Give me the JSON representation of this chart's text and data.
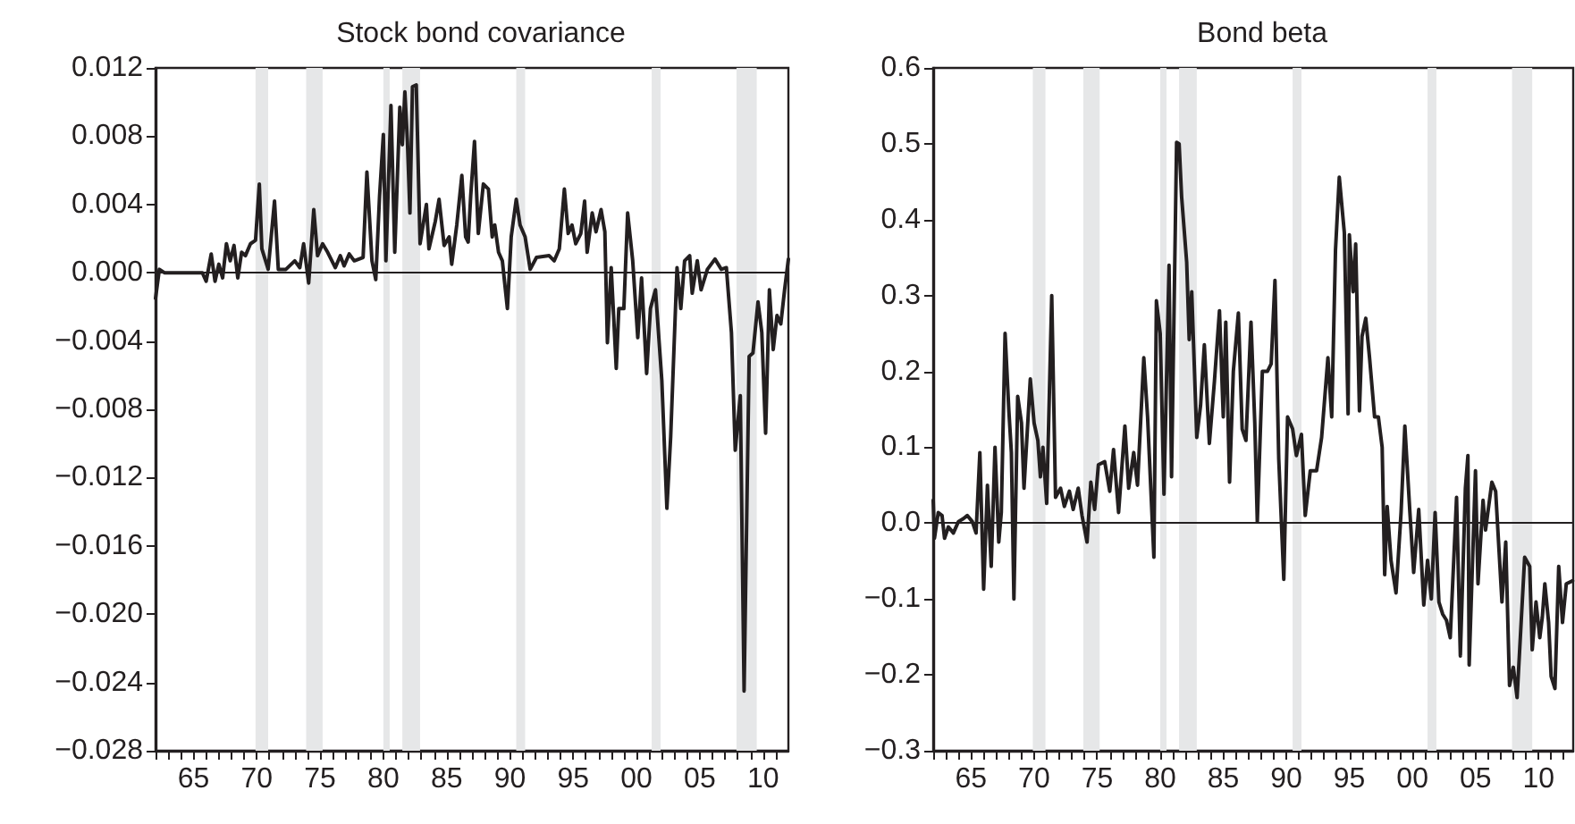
{
  "chart_data": [
    {
      "type": "line",
      "title": "Stock bond covariance",
      "marker": "none",
      "line_style": "solid",
      "xlim": [
        1962,
        2012
      ],
      "xticks": [
        {
          "value": 1962,
          "label": null
        },
        {
          "value": 1963,
          "label": null
        },
        {
          "value": 1964,
          "label": null
        },
        {
          "value": 1965,
          "label": "65"
        },
        {
          "value": 1966,
          "label": null
        },
        {
          "value": 1967,
          "label": null
        },
        {
          "value": 1968,
          "label": null
        },
        {
          "value": 1969,
          "label": null
        },
        {
          "value": 1970,
          "label": "70"
        },
        {
          "value": 1971,
          "label": null
        },
        {
          "value": 1972,
          "label": null
        },
        {
          "value": 1973,
          "label": null
        },
        {
          "value": 1974,
          "label": null
        },
        {
          "value": 1975,
          "label": "75"
        },
        {
          "value": 1976,
          "label": null
        },
        {
          "value": 1977,
          "label": null
        },
        {
          "value": 1978,
          "label": null
        },
        {
          "value": 1979,
          "label": null
        },
        {
          "value": 1980,
          "label": "80"
        },
        {
          "value": 1981,
          "label": null
        },
        {
          "value": 1982,
          "label": null
        },
        {
          "value": 1983,
          "label": null
        },
        {
          "value": 1984,
          "label": null
        },
        {
          "value": 1985,
          "label": "85"
        },
        {
          "value": 1986,
          "label": null
        },
        {
          "value": 1987,
          "label": null
        },
        {
          "value": 1988,
          "label": null
        },
        {
          "value": 1989,
          "label": null
        },
        {
          "value": 1990,
          "label": "90"
        },
        {
          "value": 1991,
          "label": null
        },
        {
          "value": 1992,
          "label": null
        },
        {
          "value": 1993,
          "label": null
        },
        {
          "value": 1994,
          "label": null
        },
        {
          "value": 1995,
          "label": "95"
        },
        {
          "value": 1996,
          "label": null
        },
        {
          "value": 1997,
          "label": null
        },
        {
          "value": 1998,
          "label": null
        },
        {
          "value": 1999,
          "label": null
        },
        {
          "value": 2000,
          "label": "00"
        },
        {
          "value": 2001,
          "label": null
        },
        {
          "value": 2002,
          "label": null
        },
        {
          "value": 2003,
          "label": null
        },
        {
          "value": 2004,
          "label": null
        },
        {
          "value": 2005,
          "label": "05"
        },
        {
          "value": 2006,
          "label": null
        },
        {
          "value": 2007,
          "label": null
        },
        {
          "value": 2008,
          "label": null
        },
        {
          "value": 2009,
          "label": null
        },
        {
          "value": 2010,
          "label": "10"
        },
        {
          "value": 2011,
          "label": null
        }
      ],
      "ylim": [
        -0.028,
        0.012
      ],
      "yticks": [
        0.012,
        0.008,
        0.004,
        {
          "value": 0,
          "label": "0.000"
        },
        {
          "value": -0.004,
          "label": "−0.004"
        },
        {
          "value": -0.008,
          "label": "−0.008"
        },
        {
          "value": -0.012,
          "label": "−0.012"
        },
        {
          "value": -0.016,
          "label": "−0.016"
        },
        {
          "value": -0.02,
          "label": "−0.020"
        },
        {
          "value": -0.024,
          "label": "−0.024"
        },
        {
          "value": -0.028,
          "label": "−0.028"
        }
      ],
      "ref_lines": [
        {
          "axis": "y",
          "value": 0,
          "color": "#231f20"
        }
      ],
      "bands": [
        {
          "axis": "x",
          "from": 1969.9,
          "to": 1970.9,
          "color": "#e6e7e8"
        },
        {
          "axis": "x",
          "from": 1973.9,
          "to": 1975.2,
          "color": "#e6e7e8"
        },
        {
          "axis": "x",
          "from": 1980.0,
          "to": 1980.5,
          "color": "#e6e7e8"
        },
        {
          "axis": "x",
          "from": 1981.5,
          "to": 1982.9,
          "color": "#e6e7e8"
        },
        {
          "axis": "x",
          "from": 1990.5,
          "to": 1991.2,
          "color": "#e6e7e8"
        },
        {
          "axis": "x",
          "from": 2001.2,
          "to": 2001.9,
          "color": "#e6e7e8"
        },
        {
          "axis": "x",
          "from": 2007.9,
          "to": 2009.5,
          "color": "#e6e7e8"
        }
      ],
      "series": [
        {
          "color": "#231f20",
          "x": [
            1962.0,
            1962.3,
            1962.7,
            1964.5,
            1965.7,
            1966.0,
            1966.4,
            1966.7,
            1967.0,
            1967.3,
            1967.6,
            1967.9,
            1968.2,
            1968.5,
            1968.8,
            1969.1,
            1969.5,
            1969.9,
            1970.2,
            1970.4,
            1970.9,
            1971.4,
            1971.7,
            1972.3,
            1973.0,
            1973.4,
            1973.7,
            1974.1,
            1974.5,
            1974.8,
            1975.2,
            1975.6,
            1976.2,
            1976.6,
            1976.9,
            1977.3,
            1977.7,
            1978.4,
            1978.7,
            1979.1,
            1979.4,
            1979.7,
            1980.0,
            1980.2,
            1980.6,
            1980.9,
            1981.3,
            1981.5,
            1981.7,
            1981.9,
            1982.1,
            1982.3,
            1982.6,
            1982.9,
            1983.4,
            1983.6,
            1984.1,
            1984.4,
            1984.8,
            1985.2,
            1985.4,
            1985.8,
            1986.2,
            1986.5,
            1986.7,
            1986.9,
            1987.2,
            1987.5,
            1987.9,
            1988.3,
            1988.6,
            1988.8,
            1989.1,
            1989.4,
            1989.8,
            1990.1,
            1990.5,
            1990.8,
            1991.2,
            1991.6,
            1992.1,
            1993.1,
            1993.5,
            1993.9,
            1994.3,
            1994.6,
            1994.9,
            1995.2,
            1995.6,
            1995.9,
            1996.1,
            1996.5,
            1996.8,
            1997.2,
            1997.5,
            1997.7,
            1998.0,
            1998.4,
            1998.6,
            1999.0,
            1999.3,
            1999.7,
            2000.1,
            2000.4,
            2000.8,
            2001.1,
            2001.5,
            2002.0,
            2002.4,
            2002.7,
            2003.2,
            2003.5,
            2003.8,
            2004.2,
            2004.4,
            2004.8,
            2005.1,
            2005.6,
            2006.2,
            2006.7,
            2007.1,
            2007.5,
            2007.8,
            2008.2,
            2008.5,
            2008.9,
            2009.2,
            2009.6,
            2009.9,
            2010.2,
            2010.5,
            2010.8,
            2011.1,
            2011.4,
            2011.7,
            2012.0
          ],
          "values": [
            -0.0015,
            0.0002,
            0.0,
            0.0,
            0.0,
            -0.0005,
            0.0011,
            -0.0005,
            0.0005,
            -0.0003,
            0.0017,
            0.0007,
            0.0016,
            -0.0003,
            0.0012,
            0.001,
            0.0017,
            0.0019,
            0.0052,
            0.0014,
            0.0002,
            0.0042,
            0.0002,
            0.0002,
            0.0007,
            0.0003,
            0.0017,
            -0.0006,
            0.0037,
            0.001,
            0.0017,
            0.0012,
            0.0003,
            0.001,
            0.0004,
            0.0011,
            0.0007,
            0.0009,
            0.0059,
            0.0007,
            -0.0004,
            0.0045,
            0.0081,
            0.0007,
            0.0098,
            0.0012,
            0.0097,
            0.0075,
            0.0106,
            0.0077,
            0.0035,
            0.0109,
            0.011,
            0.0017,
            0.004,
            0.0014,
            0.003,
            0.0043,
            0.0016,
            0.0021,
            0.0005,
            0.0028,
            0.0057,
            0.0021,
            0.0018,
            0.0045,
            0.0077,
            0.0023,
            0.0052,
            0.0049,
            0.0021,
            0.0028,
            0.0012,
            0.0007,
            -0.0021,
            0.0021,
            0.0043,
            0.0028,
            0.0021,
            0.0002,
            0.0009,
            0.001,
            0.0007,
            0.0014,
            0.0049,
            0.0023,
            0.0028,
            0.0017,
            0.0023,
            0.0042,
            0.0012,
            0.0035,
            0.0024,
            0.0037,
            0.0024,
            -0.0041,
            0.0003,
            -0.0056,
            -0.0021,
            -0.0021,
            0.0035,
            0.0007,
            -0.0038,
            -0.0003,
            -0.0059,
            -0.0021,
            -0.001,
            -0.0063,
            -0.0138,
            -0.0096,
            0.0003,
            -0.0021,
            0.0007,
            0.001,
            -0.0012,
            0.0007,
            -0.001,
            0.0002,
            0.0008,
            0.0002,
            0.0003,
            -0.0035,
            -0.0104,
            -0.0072,
            -0.0245,
            -0.0049,
            -0.0047,
            -0.0017,
            -0.0035,
            -0.0094,
            -0.001,
            -0.0045,
            -0.0025,
            -0.003,
            -0.001,
            0.0008
          ]
        }
      ]
    },
    {
      "type": "line",
      "title": "Bond beta",
      "marker": "none",
      "line_style": "solid",
      "xlim": [
        1962,
        2012.75
      ],
      "xticks": [
        {
          "value": 1962,
          "label": null
        },
        {
          "value": 1963,
          "label": null
        },
        {
          "value": 1964,
          "label": null
        },
        {
          "value": 1965,
          "label": "65"
        },
        {
          "value": 1966,
          "label": null
        },
        {
          "value": 1967,
          "label": null
        },
        {
          "value": 1968,
          "label": null
        },
        {
          "value": 1969,
          "label": null
        },
        {
          "value": 1970,
          "label": "70"
        },
        {
          "value": 1971,
          "label": null
        },
        {
          "value": 1972,
          "label": null
        },
        {
          "value": 1973,
          "label": null
        },
        {
          "value": 1974,
          "label": null
        },
        {
          "value": 1975,
          "label": "75"
        },
        {
          "value": 1976,
          "label": null
        },
        {
          "value": 1977,
          "label": null
        },
        {
          "value": 1978,
          "label": null
        },
        {
          "value": 1979,
          "label": null
        },
        {
          "value": 1980,
          "label": "80"
        },
        {
          "value": 1981,
          "label": null
        },
        {
          "value": 1982,
          "label": null
        },
        {
          "value": 1983,
          "label": null
        },
        {
          "value": 1984,
          "label": null
        },
        {
          "value": 1985,
          "label": "85"
        },
        {
          "value": 1986,
          "label": null
        },
        {
          "value": 1987,
          "label": null
        },
        {
          "value": 1988,
          "label": null
        },
        {
          "value": 1989,
          "label": null
        },
        {
          "value": 1990,
          "label": "90"
        },
        {
          "value": 1991,
          "label": null
        },
        {
          "value": 1992,
          "label": null
        },
        {
          "value": 1993,
          "label": null
        },
        {
          "value": 1994,
          "label": null
        },
        {
          "value": 1995,
          "label": "95"
        },
        {
          "value": 1996,
          "label": null
        },
        {
          "value": 1997,
          "label": null
        },
        {
          "value": 1998,
          "label": null
        },
        {
          "value": 1999,
          "label": null
        },
        {
          "value": 2000,
          "label": "00"
        },
        {
          "value": 2001,
          "label": null
        },
        {
          "value": 2002,
          "label": null
        },
        {
          "value": 2003,
          "label": null
        },
        {
          "value": 2004,
          "label": null
        },
        {
          "value": 2005,
          "label": "05"
        },
        {
          "value": 2006,
          "label": null
        },
        {
          "value": 2007,
          "label": null
        },
        {
          "value": 2008,
          "label": null
        },
        {
          "value": 2009,
          "label": null
        },
        {
          "value": 2010,
          "label": "10"
        },
        {
          "value": 2011,
          "label": null
        },
        {
          "value": 2012,
          "label": null
        }
      ],
      "ylim": [
        -0.3,
        0.6
      ],
      "yticks": [
        0.6,
        0.5,
        0.4,
        0.3,
        0.2,
        0.1,
        {
          "value": 0,
          "label": "0.0"
        },
        {
          "value": -0.1,
          "label": "−0.1"
        },
        {
          "value": -0.2,
          "label": "−0.2"
        },
        {
          "value": -0.3,
          "label": "−0.3"
        }
      ],
      "ref_lines": [
        {
          "axis": "y",
          "value": 0,
          "color": "#231f20"
        }
      ],
      "bands": [
        {
          "axis": "x",
          "from": 1969.9,
          "to": 1970.9,
          "color": "#e6e7e8"
        },
        {
          "axis": "x",
          "from": 1973.9,
          "to": 1975.2,
          "color": "#e6e7e8"
        },
        {
          "axis": "x",
          "from": 1980.0,
          "to": 1980.5,
          "color": "#e6e7e8"
        },
        {
          "axis": "x",
          "from": 1981.5,
          "to": 1982.9,
          "color": "#e6e7e8"
        },
        {
          "axis": "x",
          "from": 1990.5,
          "to": 1991.2,
          "color": "#e6e7e8"
        },
        {
          "axis": "x",
          "from": 2001.2,
          "to": 2001.9,
          "color": "#e6e7e8"
        },
        {
          "axis": "x",
          "from": 2007.9,
          "to": 2009.5,
          "color": "#e6e7e8"
        }
      ],
      "series": [
        {
          "color": "#231f20",
          "x": [
            1962.0,
            1962.1,
            1962.4,
            1962.7,
            1962.9,
            1963.2,
            1963.6,
            1964.0,
            1964.4,
            1964.7,
            1965.1,
            1965.4,
            1965.7,
            1966.0,
            1966.3,
            1966.6,
            1966.9,
            1967.2,
            1967.4,
            1967.7,
            1968.0,
            1968.2,
            1968.4,
            1968.7,
            1969.0,
            1969.2,
            1969.7,
            1970.0,
            1970.3,
            1970.5,
            1970.7,
            1971.0,
            1971.4,
            1971.7,
            1972.1,
            1972.4,
            1972.8,
            1973.1,
            1973.5,
            1973.8,
            1974.2,
            1974.5,
            1974.8,
            1975.1,
            1975.6,
            1976.0,
            1976.3,
            1976.7,
            1977.2,
            1977.5,
            1977.9,
            1978.2,
            1978.7,
            1979.0,
            1979.5,
            1979.7,
            1980.0,
            1980.3,
            1980.7,
            1980.9,
            1981.3,
            1981.5,
            1981.7,
            1982.1,
            1982.3,
            1982.5,
            1982.9,
            1983.2,
            1983.5,
            1983.9,
            1984.3,
            1984.7,
            1985.0,
            1985.2,
            1985.5,
            1985.8,
            1986.2,
            1986.5,
            1986.8,
            1987.2,
            1987.5,
            1987.7,
            1988.1,
            1988.5,
            1988.8,
            1989.1,
            1989.4,
            1989.8,
            1990.1,
            1990.5,
            1990.8,
            1991.2,
            1991.5,
            1991.9,
            1992.4,
            1992.8,
            1993.3,
            1993.6,
            1993.9,
            1994.2,
            1994.6,
            1994.9,
            1995.0,
            1995.3,
            1995.5,
            1995.8,
            1996.0,
            1996.3,
            1996.6,
            1997.0,
            1997.3,
            1997.6,
            1997.8,
            1998.0,
            1998.3,
            1998.7,
            1999.1,
            1999.4,
            1999.8,
            2000.1,
            2000.5,
            2000.9,
            2001.2,
            2001.5,
            2001.8,
            2002.1,
            2002.4,
            2002.7,
            2003.0,
            2003.5,
            2003.8,
            2004.2,
            2004.4,
            2004.5,
            2005.0,
            2005.2,
            2005.6,
            2005.8,
            2006.3,
            2006.6,
            2007.1,
            2007.4,
            2007.7,
            2008.0,
            2008.3,
            2008.9,
            2009.3,
            2009.5,
            2009.8,
            2010.1,
            2010.3,
            2010.5,
            2010.8,
            2011.0,
            2011.3,
            2011.6,
            2011.9,
            2012.2,
            2012.7
          ],
          "values": [
            0.03,
            -0.02,
            0.014,
            0.01,
            -0.02,
            -0.005,
            -0.013,
            0.002,
            0.006,
            0.01,
            0.002,
            -0.013,
            0.093,
            -0.087,
            0.05,
            -0.057,
            0.1,
            -0.025,
            0.014,
            0.25,
            0.148,
            0.093,
            -0.1,
            0.167,
            0.132,
            0.046,
            0.19,
            0.132,
            0.109,
            0.061,
            0.1,
            0.026,
            0.3,
            0.034,
            0.046,
            0.022,
            0.042,
            0.018,
            0.046,
            0.01,
            -0.025,
            0.054,
            0.018,
            0.077,
            0.081,
            0.042,
            0.097,
            0.014,
            0.128,
            0.046,
            0.093,
            0.05,
            0.218,
            0.14,
            -0.045,
            0.293,
            0.25,
            0.038,
            0.34,
            0.061,
            0.502,
            0.5,
            0.43,
            0.344,
            0.242,
            0.305,
            0.113,
            0.155,
            0.235,
            0.105,
            0.187,
            0.28,
            0.14,
            0.265,
            0.054,
            0.2,
            0.277,
            0.124,
            0.109,
            0.265,
            0.132,
            0.002,
            0.2,
            0.2,
            0.21,
            0.32,
            0.085,
            -0.074,
            0.14,
            0.124,
            0.089,
            0.117,
            0.01,
            0.069,
            0.069,
            0.113,
            0.218,
            0.14,
            0.36,
            0.456,
            0.383,
            0.144,
            0.38,
            0.305,
            0.368,
            0.148,
            0.246,
            0.27,
            0.218,
            0.14,
            0.14,
            0.1,
            -0.068,
            0.022,
            -0.049,
            -0.092,
            0.014,
            0.128,
            0.014,
            -0.065,
            0.018,
            -0.108,
            -0.049,
            -0.1,
            0.014,
            -0.104,
            -0.12,
            -0.128,
            -0.151,
            0.034,
            -0.175,
            0.046,
            0.089,
            -0.187,
            0.069,
            -0.08,
            0.03,
            -0.009,
            0.054,
            0.042,
            -0.104,
            -0.025,
            -0.214,
            -0.19,
            -0.23,
            -0.045,
            -0.057,
            -0.167,
            -0.104,
            -0.151,
            -0.124,
            -0.08,
            -0.131,
            -0.202,
            -0.218,
            -0.057,
            -0.131,
            -0.08,
            -0.076
          ]
        }
      ]
    }
  ]
}
